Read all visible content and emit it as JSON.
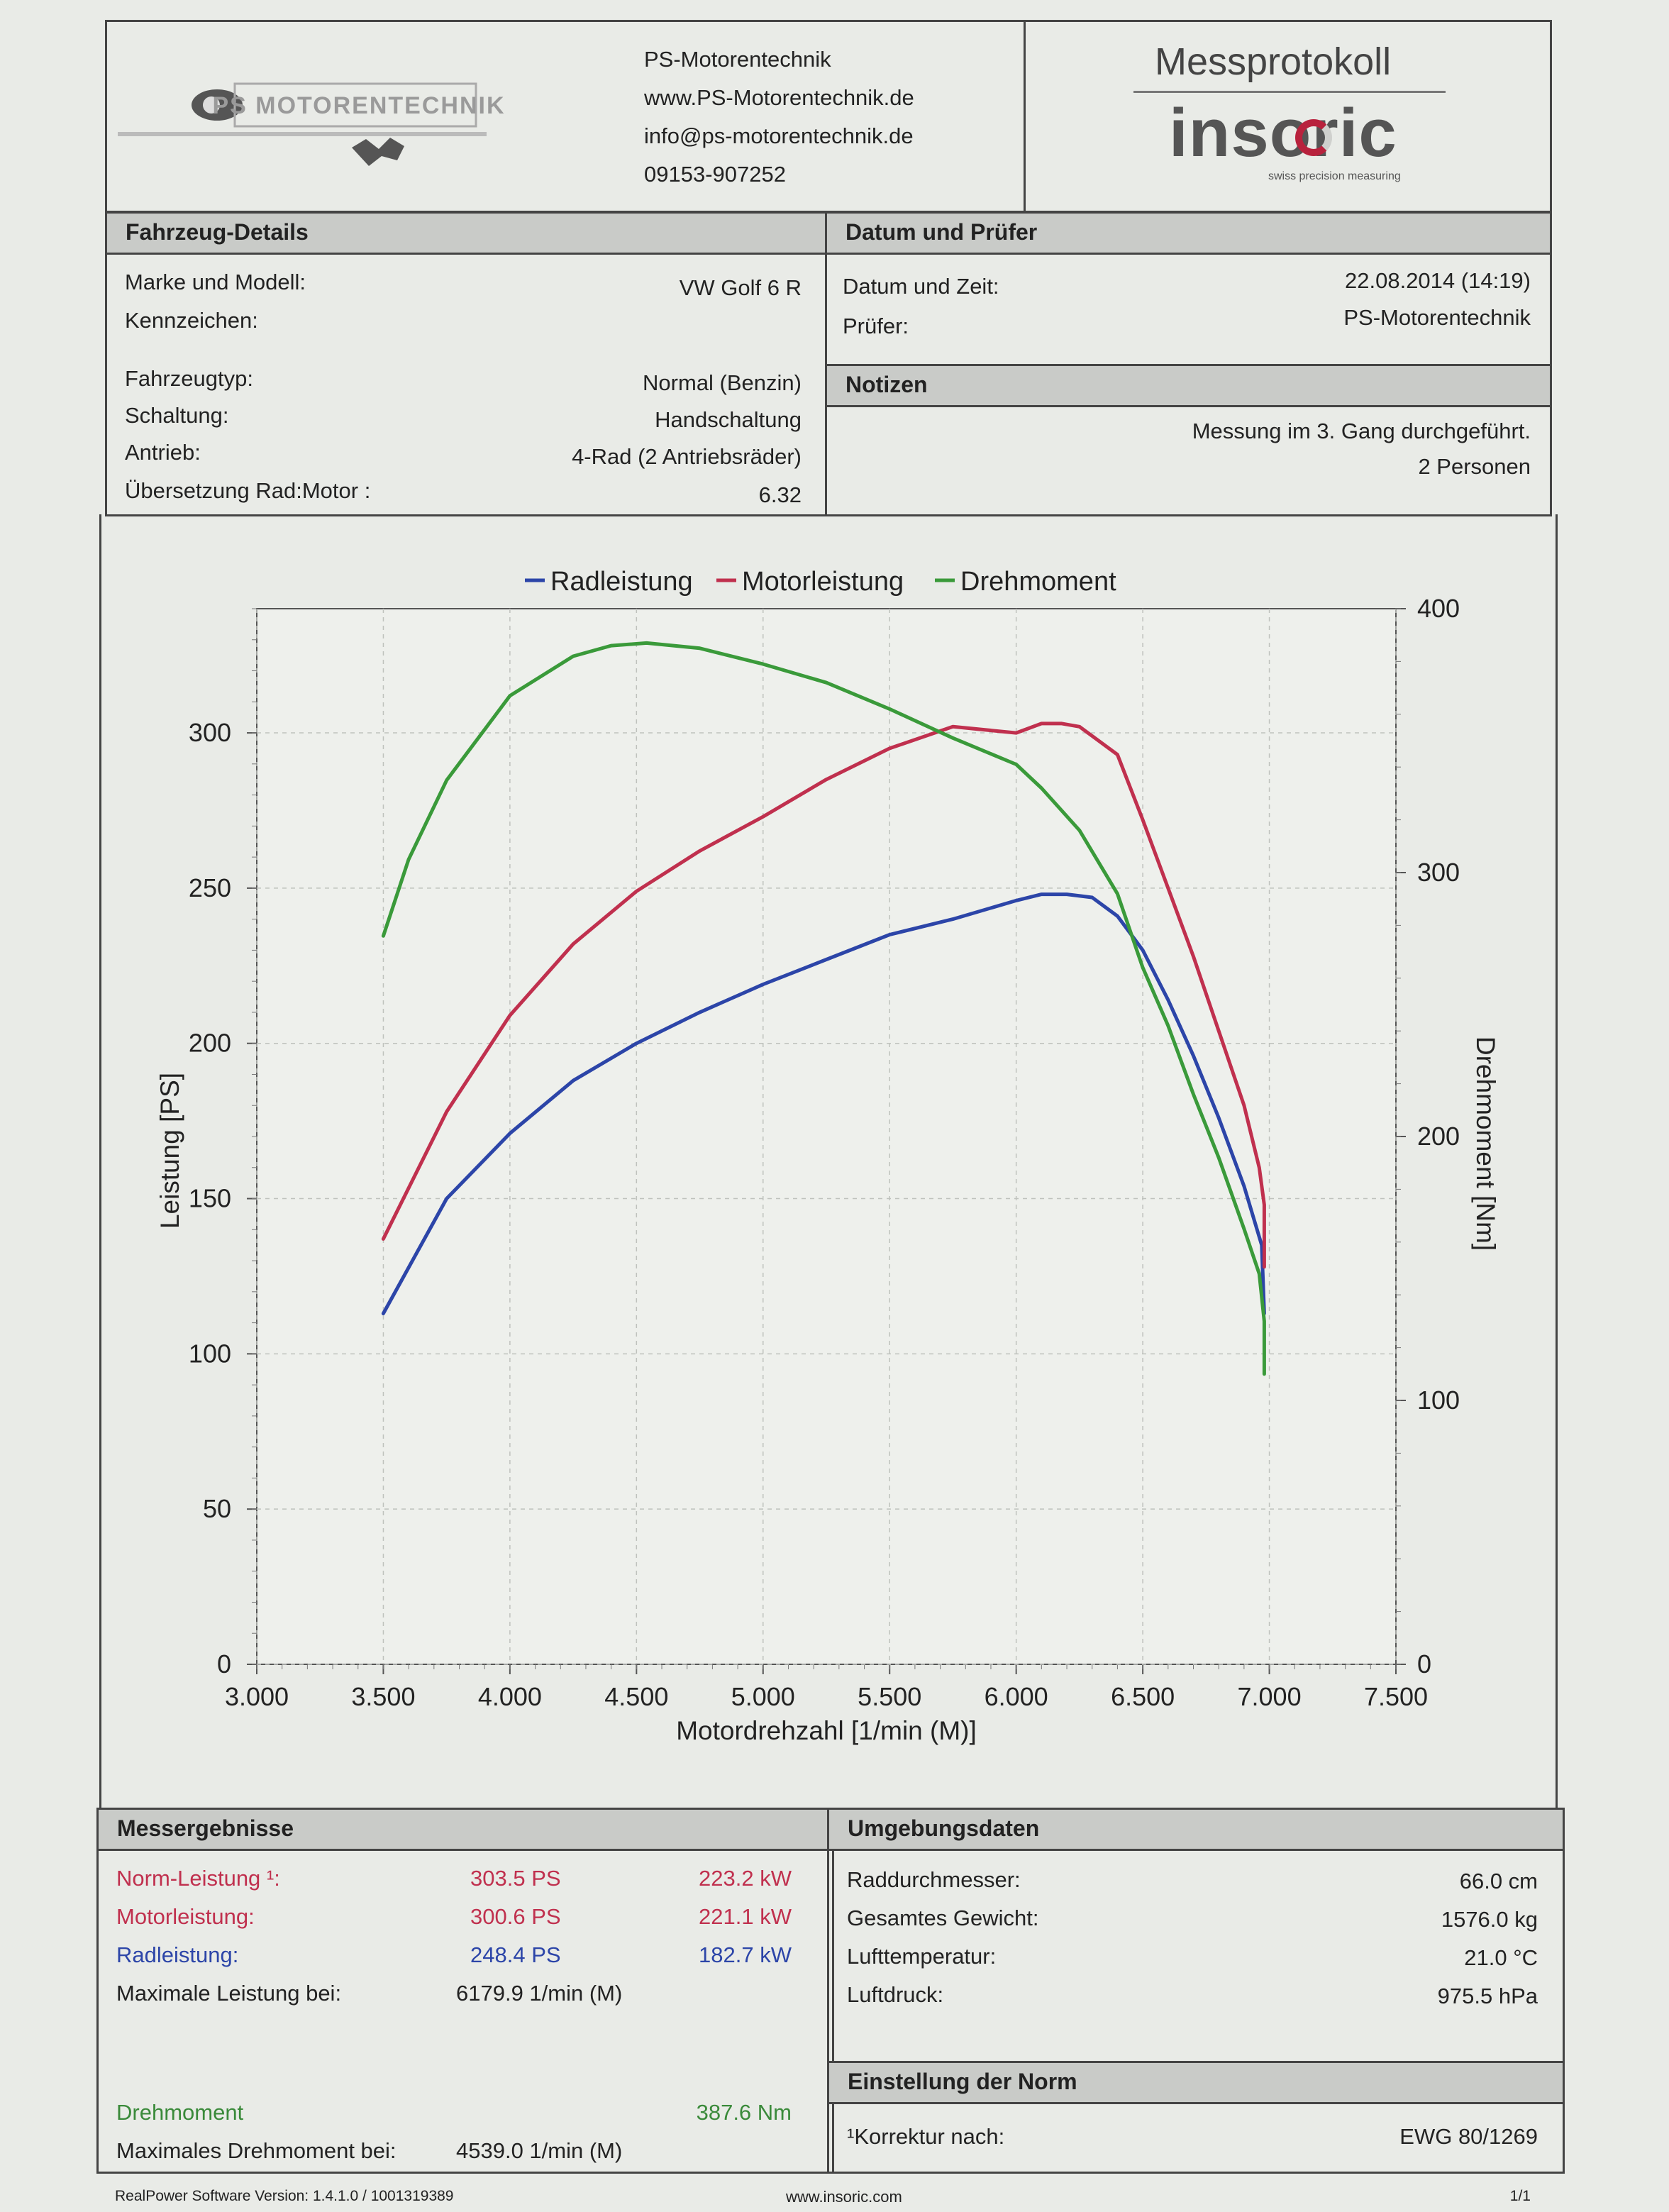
{
  "header": {
    "company_logo_text": "PS MOTORENTECHNIK",
    "company_name": "PS-Motorentechnik",
    "website": "www.PS-Motorentechnik.de",
    "email": "info@ps-motorentechnik.de",
    "phone": "09153-907252",
    "doc_title": "Messprotokoll",
    "brand_logo": "insoric",
    "brand_tagline": "swiss precision measuring"
  },
  "vehicle": {
    "title": "Fahrzeug-Details",
    "rows": [
      {
        "label": "Marke und Modell:",
        "value": "VW Golf 6 R"
      },
      {
        "label": "Kennzeichen:",
        "value": ""
      },
      {
        "label": "Fahrzeugtyp:",
        "value": "Normal (Benzin)"
      },
      {
        "label": "Schaltung:",
        "value": "Handschaltung"
      },
      {
        "label": "Antrieb:",
        "value": "4-Rad (2 Antriebsräder)"
      },
      {
        "label": "Übersetzung Rad:Motor :",
        "value": "6.32"
      }
    ]
  },
  "date_examiner": {
    "title": "Datum und Prüfer",
    "rows": [
      {
        "label": "Datum und Zeit:",
        "value": "22.08.2014 (14:19)"
      },
      {
        "label": "Prüfer:",
        "value": "PS-Motorentechnik"
      }
    ]
  },
  "notes": {
    "title": "Notizen",
    "lines": [
      "Messung im 3. Gang durchgeführt.",
      "2 Personen"
    ]
  },
  "chart_data": {
    "type": "line",
    "legend": [
      "Radleistung",
      "Motorleistung",
      "Drehmoment"
    ],
    "legend_position": "top-center",
    "xlabel": "Motordrehzahl [1/min (M)]",
    "ylabel": "Leistung [PS]",
    "y2label": "Drehmoment [Nm]",
    "xlim": [
      3000,
      7500
    ],
    "ylim": [
      0,
      340
    ],
    "y2lim": [
      0,
      400
    ],
    "xticks": [
      "3.000",
      "3.500",
      "4.000",
      "4.500",
      "5.000",
      "5.500",
      "6.000",
      "6.500",
      "7.000",
      "7.500"
    ],
    "yticks": [
      "0",
      "50",
      "100",
      "150",
      "200",
      "250",
      "300"
    ],
    "y2ticks": [
      "0",
      "100",
      "200",
      "300",
      "400"
    ],
    "grid": true,
    "colors": {
      "Radleistung": "#2c45a8",
      "Motorleistung": "#c0304e",
      "Drehmoment": "#3a9a3a"
    },
    "series": [
      {
        "name": "Radleistung",
        "axis": "left",
        "x": [
          3500,
          3750,
          4000,
          4250,
          4500,
          4750,
          5000,
          5250,
          5500,
          5750,
          6000,
          6100,
          6200,
          6300,
          6400,
          6500,
          6600,
          6700,
          6800,
          6900,
          6970,
          6980
        ],
        "y": [
          113,
          150,
          171,
          188,
          200,
          210,
          219,
          227,
          235,
          240,
          246,
          248,
          248,
          247,
          241,
          230,
          214,
          196,
          176,
          154,
          135,
          113
        ]
      },
      {
        "name": "Motorleistung",
        "axis": "left",
        "x": [
          3500,
          3750,
          4000,
          4250,
          4500,
          4750,
          5000,
          5250,
          5500,
          5750,
          6000,
          6100,
          6180,
          6250,
          6300,
          6400,
          6500,
          6600,
          6700,
          6800,
          6900,
          6960,
          6980,
          6980
        ],
        "y": [
          137,
          178,
          209,
          232,
          249,
          262,
          273,
          285,
          295,
          302,
          300,
          303,
          303,
          302,
          299,
          293,
          272,
          250,
          228,
          204,
          180,
          160,
          148,
          128
        ]
      },
      {
        "name": "Drehmoment",
        "axis": "right",
        "x": [
          3500,
          3600,
          3750,
          4000,
          4250,
          4400,
          4540,
          4750,
          5000,
          5250,
          5500,
          5750,
          6000,
          6100,
          6250,
          6400,
          6500,
          6600,
          6700,
          6800,
          6900,
          6960,
          6980,
          6980
        ],
        "y": [
          276,
          305,
          335,
          367,
          382,
          386,
          387,
          385,
          379,
          372,
          362,
          351,
          341,
          332,
          316,
          292,
          264,
          242,
          216,
          192,
          165,
          148,
          130,
          110
        ]
      }
    ]
  },
  "results": {
    "title": "Messergebnisse",
    "norm": {
      "label": "Norm-Leistung ¹:",
      "ps": "303.5 PS",
      "kw": "223.2 kW"
    },
    "engine": {
      "label": "Motorleistung:",
      "ps": "300.6 PS",
      "kw": "221.1 kW"
    },
    "wheel": {
      "label": "Radleistung:",
      "ps": "248.4 PS",
      "kw": "182.7 kW"
    },
    "max_power": {
      "label": "Maximale Leistung bei:",
      "value": "6179.9 1/min (M)"
    },
    "torque": {
      "label": "Drehmoment",
      "value": "387.6 Nm"
    },
    "max_torque": {
      "label": "Maximales Drehmoment bei:",
      "value": "4539.0 1/min (M)"
    }
  },
  "environment": {
    "title": "Umgebungsdaten",
    "rows": [
      {
        "label": "Raddurchmesser:",
        "value": "66.0 cm"
      },
      {
        "label": "Gesamtes Gewicht:",
        "value": "1576.0 kg"
      },
      {
        "label": "Lufttemperatur:",
        "value": "21.0 °C"
      },
      {
        "label": "Luftdruck:",
        "value": "975.5 hPa"
      }
    ]
  },
  "norm_setting": {
    "title": "Einstellung der Norm",
    "label": "¹Korrektur nach:",
    "value": "EWG 80/1269"
  },
  "footer": {
    "software": "RealPower Software Version: 1.4.1.0 / 1001319389",
    "url": "www.insoric.com",
    "page": "1/1"
  }
}
